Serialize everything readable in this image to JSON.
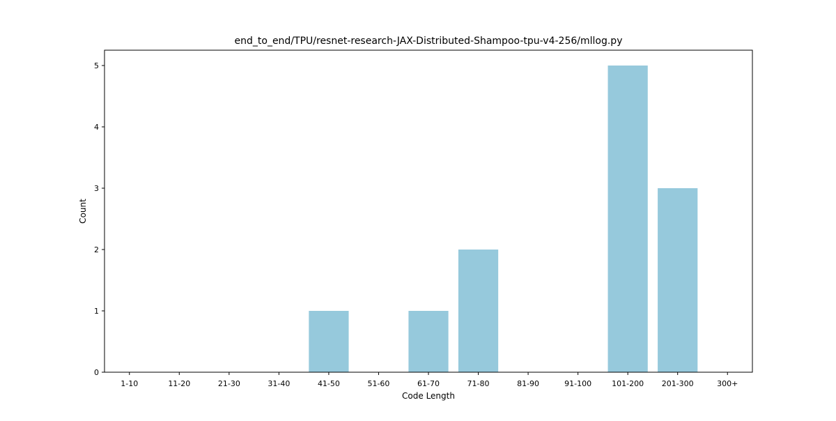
{
  "chart_data": {
    "type": "bar",
    "title": "end_to_end/TPU/resnet-research-JAX-Distributed-Shampoo-tpu-v4-256/mllog.py",
    "xlabel": "Code Length",
    "ylabel": "Count",
    "categories": [
      "1-10",
      "11-20",
      "21-30",
      "31-40",
      "41-50",
      "51-60",
      "61-70",
      "71-80",
      "81-90",
      "91-100",
      "101-200",
      "201-300",
      "300+"
    ],
    "values": [
      0,
      0,
      0,
      0,
      1,
      0,
      1,
      2,
      0,
      0,
      5,
      3,
      0
    ],
    "ylim": [
      0,
      5.25
    ],
    "yticks": [
      0,
      1,
      2,
      3,
      4,
      5
    ],
    "grid": false,
    "bar_color": "#96c9dc"
  }
}
